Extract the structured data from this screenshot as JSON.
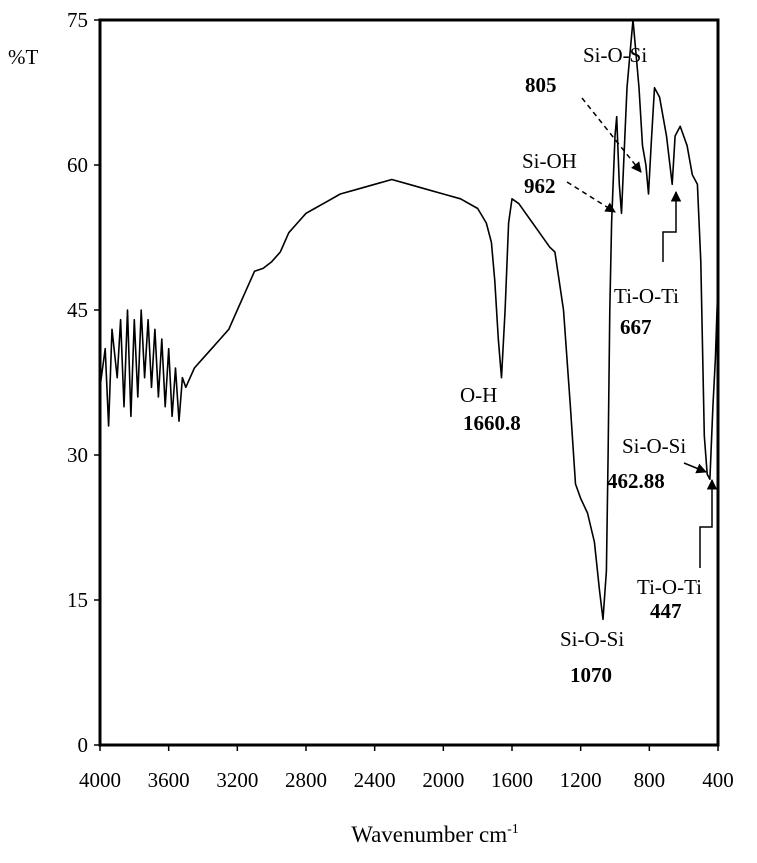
{
  "chart_data": {
    "type": "line",
    "y_label": "%T",
    "x_label": {
      "text": "Wavenumber cm",
      "superscript": "-1"
    },
    "color": "#000000",
    "xlim": [
      4000,
      400
    ],
    "ylim": [
      0,
      75
    ],
    "xticks": [
      4000,
      3600,
      3200,
      2800,
      2400,
      2000,
      1600,
      1200,
      800,
      400
    ],
    "yticks": [
      0,
      15,
      30,
      45,
      60,
      75
    ],
    "x": [
      4000,
      3970,
      3950,
      3930,
      3900,
      3880,
      3860,
      3840,
      3820,
      3800,
      3780,
      3760,
      3740,
      3720,
      3700,
      3680,
      3660,
      3640,
      3620,
      3600,
      3580,
      3560,
      3540,
      3520,
      3500,
      3450,
      3400,
      3350,
      3300,
      3250,
      3200,
      3150,
      3100,
      3050,
      3000,
      2950,
      2900,
      2850,
      2800,
      2750,
      2700,
      2600,
      2500,
      2400,
      2300,
      2200,
      2100,
      2000,
      1900,
      1800,
      1750,
      1720,
      1700,
      1680,
      1661,
      1640,
      1620,
      1600,
      1560,
      1520,
      1480,
      1440,
      1400,
      1380,
      1350,
      1300,
      1260,
      1230,
      1200,
      1160,
      1120,
      1090,
      1070,
      1050,
      1040,
      1030,
      1020,
      1000,
      990,
      975,
      962,
      950,
      930,
      910,
      895,
      880,
      860,
      840,
      820,
      805,
      790,
      770,
      740,
      700,
      667,
      650,
      620,
      580,
      550,
      520,
      500,
      480,
      463,
      447,
      430,
      415,
      400
    ],
    "values": [
      37,
      41,
      33,
      43,
      38,
      44,
      35,
      45,
      34,
      44,
      36,
      45,
      38,
      44,
      37,
      43,
      36,
      42,
      35,
      41,
      34,
      39,
      33.5,
      38,
      37,
      39,
      40,
      41,
      42,
      43,
      45,
      47,
      49,
      49.3,
      50,
      51,
      53,
      54,
      55,
      55.5,
      56,
      57,
      57.5,
      58,
      58.5,
      58,
      57.5,
      57,
      56.5,
      55.5,
      54,
      52,
      48,
      42,
      38,
      45,
      54,
      56.5,
      56,
      55,
      54,
      53,
      52,
      51.5,
      51,
      45,
      35,
      27,
      25.5,
      24,
      21,
      16,
      13,
      18,
      30,
      45,
      54,
      63,
      65,
      58,
      55,
      60,
      68,
      72,
      75,
      72,
      68,
      62,
      60,
      57,
      62,
      68,
      67,
      63,
      58,
      63,
      64,
      62,
      59,
      58,
      50,
      32,
      28,
      27.5,
      35,
      40,
      48
    ],
    "annotations": [
      {
        "label": "Si-O-Si",
        "value": 805
      },
      {
        "label": "Si-OH",
        "value": 962
      },
      {
        "label": "Ti-O-Ti",
        "value": 667
      },
      {
        "label": "O-H",
        "value": 1660.8
      },
      {
        "label": "Si-O-Si",
        "value": 1070
      },
      {
        "label": "Si-O-Si",
        "value": 462.88
      },
      {
        "label": "Ti-O-Ti",
        "value": 447
      }
    ]
  }
}
